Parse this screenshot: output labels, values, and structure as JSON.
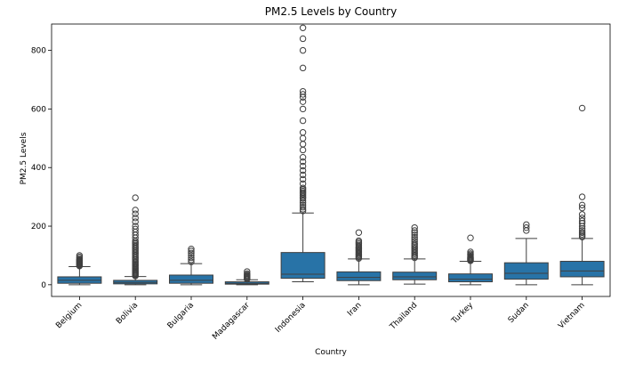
{
  "chart_data": {
    "type": "box",
    "title": "PM2.5 Levels by Country",
    "xlabel": "Country",
    "ylabel": "PM2.5 Levels",
    "ylim": [
      -40,
      890
    ],
    "yticks": [
      0,
      200,
      400,
      600,
      800
    ],
    "categories": [
      "Belgium",
      "Bolivia",
      "Bulgaria",
      "Madagascar",
      "Indonesia",
      "Iran",
      "Thailand",
      "Turkey",
      "Sudan",
      "Vietnam"
    ],
    "color": "#2873a7",
    "boxes": [
      {
        "category": "Belgium",
        "min": 0,
        "q1": 5,
        "median": 15,
        "q3": 27,
        "max": 62,
        "outliers": [
          64,
          66,
          68,
          70,
          72,
          74,
          76,
          78,
          80,
          82,
          84,
          86,
          90,
          95,
          100
        ]
      },
      {
        "category": "Bolivia",
        "min": 0,
        "q1": 3,
        "median": 8,
        "q3": 15,
        "max": 28,
        "outliers": [
          30,
          33,
          36,
          39,
          42,
          45,
          48,
          52,
          56,
          60,
          64,
          68,
          72,
          76,
          80,
          85,
          90,
          95,
          100,
          105,
          110,
          115,
          120,
          125,
          130,
          135,
          140,
          145,
          150,
          160,
          170,
          180,
          190,
          200,
          215,
          228,
          242,
          255,
          297
        ]
      },
      {
        "category": "Bulgaria",
        "min": 0,
        "q1": 5,
        "median": 15,
        "q3": 33,
        "max": 72,
        "outliers": [
          78,
          85,
          92,
          100,
          108,
          115,
          122
        ]
      },
      {
        "category": "Madagascar",
        "min": 0,
        "q1": 2,
        "median": 5,
        "q3": 10,
        "max": 17,
        "outliers": [
          19,
          22,
          25,
          28,
          31,
          34,
          38,
          45
        ]
      },
      {
        "category": "Indonesia",
        "min": 10,
        "q1": 22,
        "median": 36,
        "q3": 110,
        "max": 245,
        "outliers": [
          252,
          258,
          265,
          272,
          280,
          288,
          295,
          300,
          305,
          310,
          315,
          320,
          325,
          330,
          345,
          360,
          375,
          390,
          405,
          420,
          435,
          460,
          480,
          500,
          520,
          560,
          600,
          625,
          640,
          650,
          660,
          740,
          800,
          840,
          877
        ]
      },
      {
        "category": "Iran",
        "min": 0,
        "q1": 14,
        "median": 25,
        "q3": 44,
        "max": 88,
        "outliers": [
          90,
          94,
          98,
          102,
          106,
          110,
          114,
          118,
          122,
          126,
          130,
          135,
          140,
          145,
          150,
          178
        ]
      },
      {
        "category": "Thailand",
        "min": 2,
        "q1": 17,
        "median": 27,
        "q3": 43,
        "max": 88,
        "outliers": [
          92,
          96,
          100,
          105,
          110,
          115,
          120,
          125,
          130,
          135,
          140,
          148,
          155,
          162,
          170,
          178,
          185,
          195
        ]
      },
      {
        "category": "Turkey",
        "min": 0,
        "q1": 10,
        "median": 19,
        "q3": 37,
        "max": 80,
        "outliers": [
          82,
          84,
          86,
          88,
          90,
          92,
          95,
          98,
          102,
          106,
          112,
          160
        ]
      },
      {
        "category": "Sudan",
        "min": 0,
        "q1": 19,
        "median": 39,
        "q3": 75,
        "max": 158,
        "outliers": [
          185,
          195,
          205
        ]
      },
      {
        "category": "Vietnam",
        "min": 0,
        "q1": 27,
        "median": 47,
        "q3": 80,
        "max": 158,
        "outliers": [
          163,
          167,
          172,
          178,
          185,
          192,
          200,
          210,
          218,
          228,
          240,
          262,
          272,
          300,
          603
        ]
      }
    ]
  }
}
